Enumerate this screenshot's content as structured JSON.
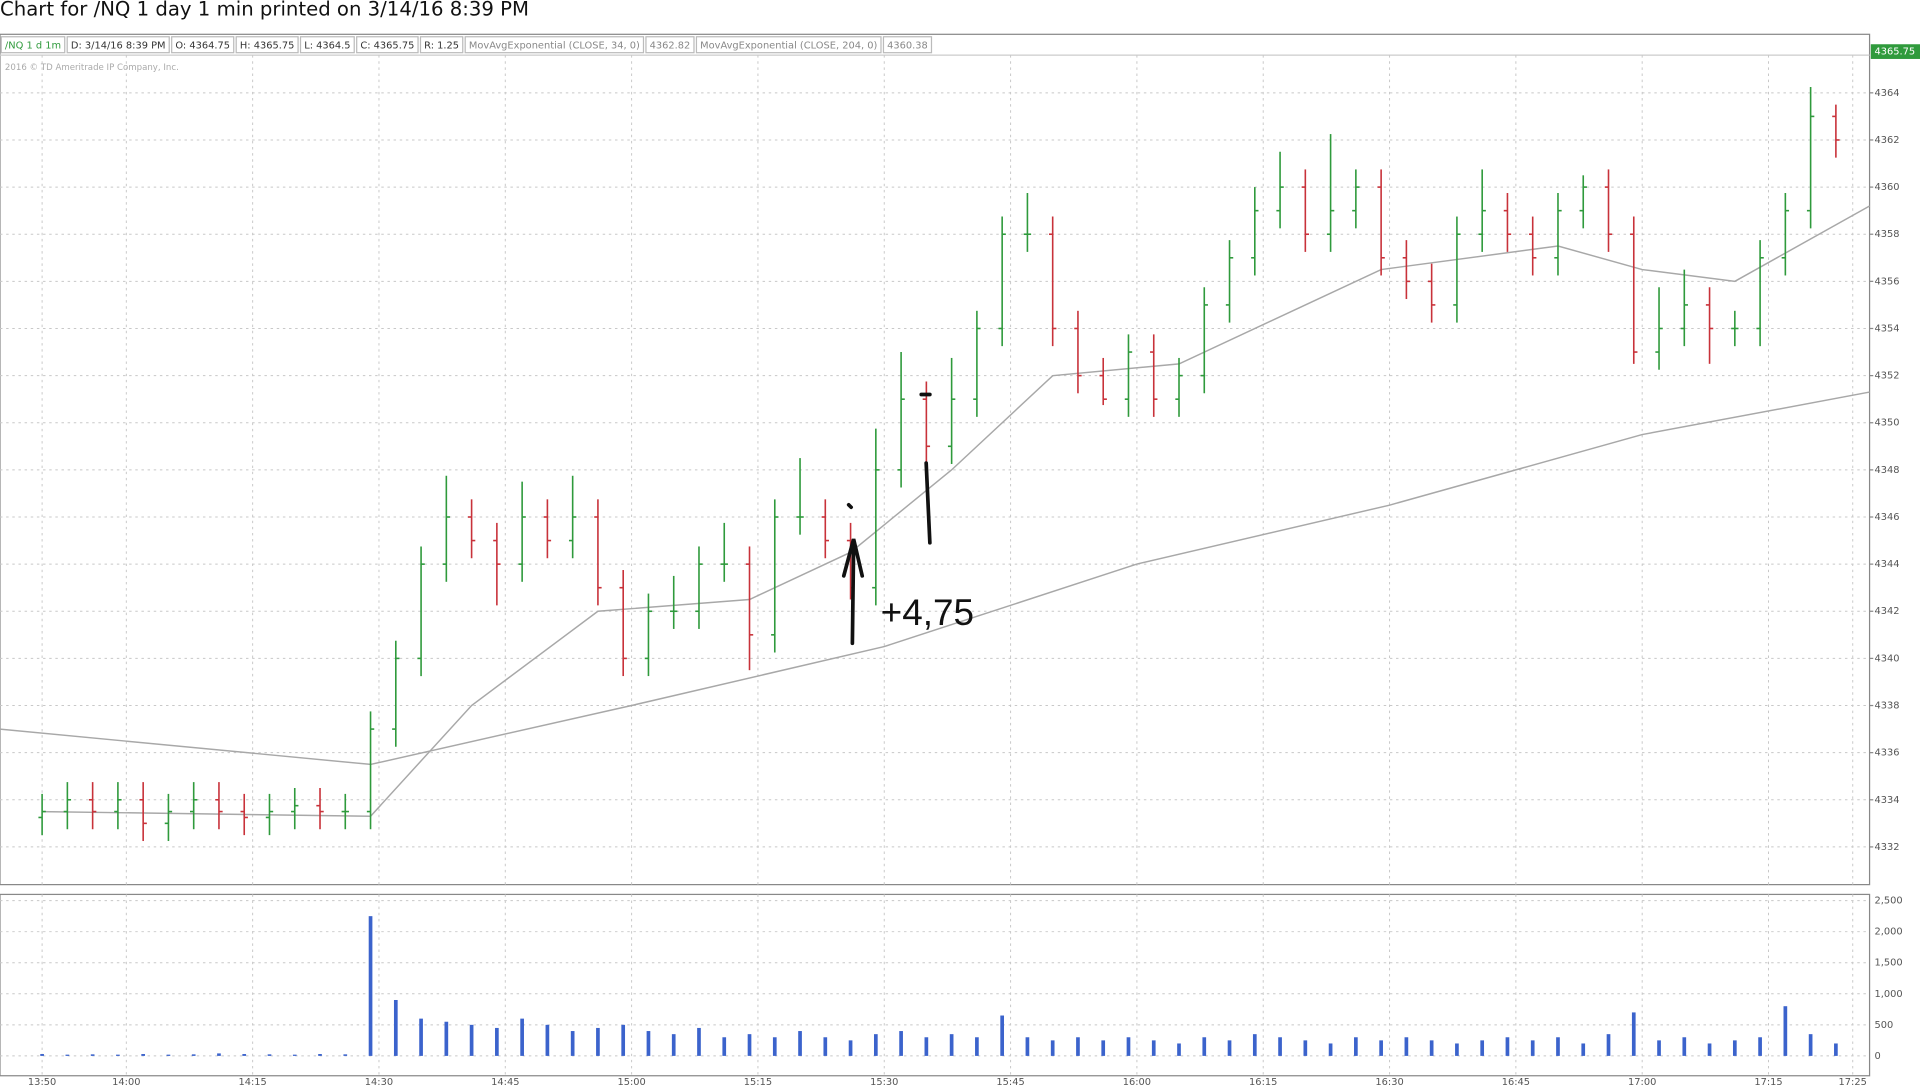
{
  "header": {
    "title": "Chart for /NQ 1 day 1 min printed on 3/14/16 8:39 PM"
  },
  "info_bar": [
    "/NQ 1 d 1m",
    "D: 3/14/16 8:39 PM",
    "O: 4364.75",
    "H: 4365.75",
    "L: 4364.5",
    "C: 4365.75",
    "R: 1.25",
    "MovAvgExponential (CLOSE, 34, 0)",
    "4362.82",
    "MovAvgExponential (CLOSE, 204, 0)",
    "4360.38"
  ],
  "copyright": "2016 © TD Ameritrade IP Company, Inc.",
  "annotation": "+4,75",
  "chart_data": [
    {
      "type": "ohlc",
      "x": [
        "13:50",
        "13:53",
        "13:56",
        "13:59",
        "14:02",
        "14:05",
        "14:08",
        "14:11",
        "14:14",
        "14:17",
        "14:20",
        "14:23",
        "14:26",
        "14:29",
        "14:32",
        "14:35",
        "14:38",
        "14:41",
        "14:44",
        "14:47",
        "14:50",
        "14:53",
        "14:56",
        "14:59",
        "15:02",
        "15:05",
        "15:08",
        "15:11",
        "15:14",
        "15:17",
        "15:20",
        "15:23",
        "15:26",
        "15:29",
        "15:32",
        "15:35",
        "15:38",
        "15:41",
        "15:44",
        "15:47",
        "15:50",
        "15:53",
        "15:56",
        "15:59",
        "16:02",
        "16:05",
        "16:08",
        "16:11",
        "16:14",
        "16:17",
        "16:20",
        "16:23",
        "16:26",
        "16:29",
        "16:32",
        "16:35",
        "16:38",
        "16:41",
        "16:44",
        "16:47",
        "16:50",
        "16:53",
        "16:56",
        "16:59",
        "17:02",
        "17:05",
        "17:08",
        "17:11",
        "17:14",
        "17:17",
        "17:20",
        "17:23"
      ],
      "open": [
        4333.25,
        4333.5,
        4334,
        4333.5,
        4334,
        4333,
        4333.5,
        4334,
        4333.5,
        4333.25,
        4333.5,
        4333.75,
        4333.5,
        4333.5,
        4337,
        4340,
        4344,
        4346,
        4345,
        4344,
        4346,
        4345,
        4346,
        4343,
        4340,
        4342,
        4342,
        4344,
        4344,
        4341,
        4346,
        4346,
        4345,
        4343,
        4348,
        4351,
        4349,
        4351,
        4354,
        4358,
        4358,
        4354,
        4352,
        4351,
        4353,
        4351,
        4352,
        4355,
        4357,
        4359,
        4360,
        4358,
        4359,
        4360,
        4357,
        4356,
        4355,
        4358,
        4359,
        4358,
        4357,
        4359,
        4360,
        4358,
        4353,
        4354,
        4355,
        4354,
        4354,
        4357,
        4359,
        4363
      ],
      "high": [
        4334.25,
        4334.75,
        4334.75,
        4334.75,
        4334.75,
        4334.25,
        4334.75,
        4334.75,
        4334.25,
        4334.25,
        4334.5,
        4334.5,
        4334.25,
        4337.75,
        4340.75,
        4344.75,
        4347.75,
        4346.75,
        4345.75,
        4347.5,
        4346.75,
        4347.75,
        4346.75,
        4343.75,
        4342.75,
        4343.5,
        4344.75,
        4345.75,
        4344.75,
        4346.75,
        4348.5,
        4346.75,
        4345.75,
        4349.75,
        4353,
        4351.75,
        4352.75,
        4354.75,
        4358.75,
        4359.75,
        4358.75,
        4354.75,
        4352.75,
        4353.75,
        4353.75,
        4352.75,
        4355.75,
        4357.75,
        4360,
        4361.5,
        4360.75,
        4362.25,
        4360.75,
        4360.75,
        4357.75,
        4356.75,
        4358.75,
        4360.75,
        4359.75,
        4358.75,
        4359.75,
        4360.5,
        4360.75,
        4358.75,
        4355.75,
        4356.5,
        4355.75,
        4354.75,
        4357.75,
        4359.75,
        4364.25,
        4363.5
      ],
      "low": [
        4332.5,
        4332.75,
        4332.75,
        4332.75,
        4332.25,
        4332.25,
        4332.75,
        4332.75,
        4332.5,
        4332.5,
        4332.75,
        4332.75,
        4332.75,
        4332.75,
        4336.25,
        4339.25,
        4343.25,
        4344.25,
        4342.25,
        4343.25,
        4344.25,
        4344.25,
        4342.25,
        4339.25,
        4339.25,
        4341.25,
        4341.25,
        4343.25,
        4339.5,
        4340.25,
        4345.25,
        4344.25,
        4342.5,
        4342.25,
        4347.25,
        4348.25,
        4348.25,
        4350.25,
        4353.25,
        4357.25,
        4353.25,
        4351.25,
        4350.75,
        4350.25,
        4350.25,
        4350.25,
        4351.25,
        4354.25,
        4356.25,
        4358.25,
        4357.25,
        4357.25,
        4358.25,
        4356.25,
        4355.25,
        4354.25,
        4354.25,
        4357.25,
        4357.25,
        4356.25,
        4356.25,
        4358.25,
        4357.25,
        4352.5,
        4352.25,
        4353.25,
        4352.5,
        4353.25,
        4353.25,
        4356.25,
        4358.25,
        4361.25
      ],
      "close": [
        4333.5,
        4334,
        4333.5,
        4334,
        4333,
        4333.5,
        4334,
        4333.5,
        4333.25,
        4333.5,
        4333.75,
        4333.5,
        4333.5,
        4337,
        4340,
        4344,
        4346,
        4345,
        4344,
        4346,
        4345,
        4346,
        4343,
        4340,
        4342,
        4342,
        4344,
        4344,
        4341,
        4346,
        4346,
        4345,
        4343,
        4348,
        4351,
        4349,
        4351,
        4354,
        4358,
        4358,
        4354,
        4352,
        4351,
        4353,
        4351,
        4352,
        4355,
        4357,
        4359,
        4360,
        4358,
        4359,
        4360,
        4357,
        4356,
        4355,
        4358,
        4359,
        4358,
        4357,
        4359,
        4360,
        4358,
        4353,
        4354,
        4355,
        4354,
        4354,
        4357,
        4359,
        4363,
        4362
      ],
      "up_color": "#2f9a3c",
      "down_color": "#c8323a",
      "moving_averages": [
        {
          "color": "#a8a8a8",
          "x": [
            "13:50",
            "14:29",
            "14:41",
            "14:56",
            "15:14",
            "15:26",
            "15:38",
            "15:50",
            "16:05",
            "16:20",
            "16:29",
            "16:50",
            "17:00",
            "17:11",
            "17:27"
          ],
          "values": [
            4333.5,
            4333.3,
            4338,
            4342,
            4342.5,
            4344.5,
            4348,
            4352,
            4352.5,
            4355,
            4356.5,
            4357.5,
            4356.5,
            4356,
            4359.2
          ]
        },
        {
          "color": "#a8a8a8",
          "x": [
            "13:45",
            "14:29",
            "15:00",
            "15:30",
            "16:00",
            "16:30",
            "17:00",
            "17:27"
          ],
          "values": [
            4337,
            4335.5,
            4338,
            4340.5,
            4344,
            4346.5,
            4349.5,
            4351.3
          ]
        }
      ],
      "last_price": 4365.75,
      "last_color": "#2f9a3c",
      "xlim": [
        "13:45",
        "17:27"
      ],
      "xticks": [
        "13:50",
        "14:00",
        "14:15",
        "14:30",
        "14:45",
        "15:00",
        "15:15",
        "15:30",
        "15:45",
        "16:00",
        "16:15",
        "16:30",
        "16:45",
        "17:00",
        "17:15",
        "17:25"
      ],
      "ylim": [
        4330.4,
        4365.6
      ],
      "yticks": [
        4332,
        4334,
        4336,
        4338,
        4340,
        4342,
        4344,
        4346,
        4348,
        4350,
        4352,
        4354,
        4356,
        4358,
        4360,
        4362,
        4364
      ],
      "grid": true
    },
    {
      "type": "bar",
      "color": "#3b63cc",
      "values": [
        30,
        20,
        25,
        20,
        30,
        20,
        25,
        40,
        30,
        25,
        20,
        30,
        25,
        2250,
        900,
        600,
        550,
        500,
        450,
        600,
        500,
        400,
        450,
        500,
        400,
        350,
        450,
        300,
        350,
        300,
        400,
        300,
        250,
        350,
        400,
        300,
        350,
        300,
        650,
        300,
        250,
        300,
        250,
        300,
        250,
        200,
        300,
        250,
        350,
        300,
        250,
        200,
        300,
        250,
        300,
        250,
        200,
        250,
        300,
        250,
        300,
        200,
        350,
        700,
        250,
        300,
        200,
        250,
        300,
        800,
        350,
        200
      ],
      "ylim": [
        -300,
        2600
      ],
      "yticks": [
        0,
        500,
        {
          "value": 1000,
          "label": "1,000"
        },
        {
          "value": 1500,
          "label": "1,500"
        },
        {
          "value": 2000,
          "label": "2,000"
        },
        {
          "value": 2500,
          "label": "2,500"
        }
      ],
      "grid": true
    }
  ]
}
